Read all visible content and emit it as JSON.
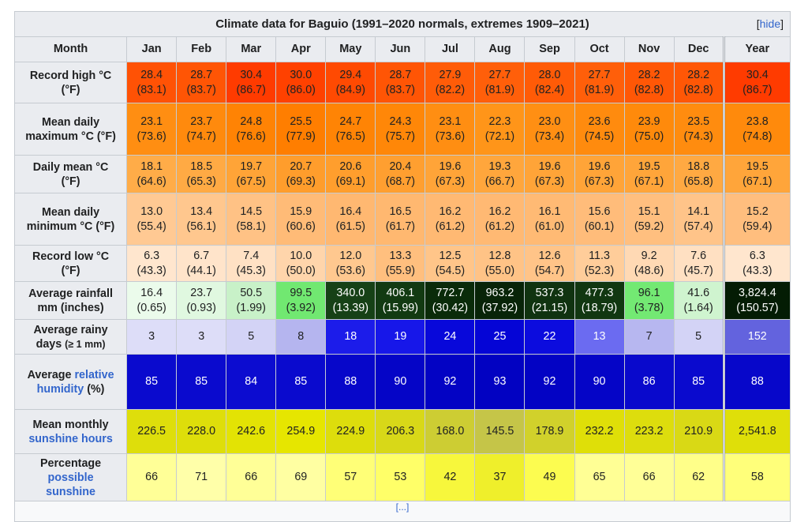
{
  "table": {
    "title": "Climate data for Baguio (1991–2020 normals, extremes 1909–2021)",
    "hide_open": "[",
    "hide_label": "hide",
    "hide_close": "]",
    "columns": [
      "Month",
      "Jan",
      "Feb",
      "Mar",
      "Apr",
      "May",
      "Jun",
      "Jul",
      "Aug",
      "Sep",
      "Oct",
      "Nov",
      "Dec",
      "Year"
    ],
    "footer_note": "[...]",
    "link_color": "#3366cc",
    "header_bg": "#eaecf0",
    "rows": [
      {
        "name": "record-high",
        "label": [
          {
            "t": "Record high °C (°F)"
          }
        ],
        "cells": [
          {
            "v": "28.4",
            "v2": "(83.1)",
            "bg": "#FF5205"
          },
          {
            "v": "28.7",
            "v2": "(83.7)",
            "bg": "#FF5505"
          },
          {
            "v": "30.4",
            "v2": "(86.7)",
            "bg": "#FF3B00"
          },
          {
            "v": "30.0",
            "v2": "(86.0)",
            "bg": "#FF4100"
          },
          {
            "v": "29.4",
            "v2": "(84.9)",
            "bg": "#FF4A02"
          },
          {
            "v": "28.7",
            "v2": "(83.7)",
            "bg": "#FF5505"
          },
          {
            "v": "27.9",
            "v2": "(82.2)",
            "bg": "#FF5C08"
          },
          {
            "v": "27.7",
            "v2": "(81.9)",
            "bg": "#FF5F0A"
          },
          {
            "v": "28.0",
            "v2": "(82.4)",
            "bg": "#FF5B07"
          },
          {
            "v": "27.7",
            "v2": "(81.9)",
            "bg": "#FF5F0A"
          },
          {
            "v": "28.2",
            "v2": "(82.8)",
            "bg": "#FF5706"
          },
          {
            "v": "28.2",
            "v2": "(82.8)",
            "bg": "#FF5706"
          },
          {
            "v": "30.4",
            "v2": "(86.7)",
            "bg": "#FF3B00"
          }
        ]
      },
      {
        "name": "mean-max",
        "label": [
          {
            "t": "Mean daily maximum °C (°F)"
          }
        ],
        "cells": [
          {
            "v": "23.1",
            "v2": "(73.6)",
            "bg": "#FF8E12"
          },
          {
            "v": "23.7",
            "v2": "(74.7)",
            "bg": "#FF8A0D"
          },
          {
            "v": "24.8",
            "v2": "(76.6)",
            "bg": "#FF8304"
          },
          {
            "v": "25.5",
            "v2": "(77.9)",
            "bg": "#FF7E00"
          },
          {
            "v": "24.7",
            "v2": "(76.5)",
            "bg": "#FF8405"
          },
          {
            "v": "24.3",
            "v2": "(75.7)",
            "bg": "#FF8708"
          },
          {
            "v": "23.1",
            "v2": "(73.6)",
            "bg": "#FF8E12"
          },
          {
            "v": "22.3",
            "v2": "(72.1)",
            "bg": "#FF9519"
          },
          {
            "v": "23.0",
            "v2": "(73.4)",
            "bg": "#FF8F13"
          },
          {
            "v": "23.6",
            "v2": "(74.5)",
            "bg": "#FF8B0E"
          },
          {
            "v": "23.9",
            "v2": "(75.0)",
            "bg": "#FF8A0B"
          },
          {
            "v": "23.5",
            "v2": "(74.3)",
            "bg": "#FF8C0F"
          },
          {
            "v": "23.8",
            "v2": "(74.8)",
            "bg": "#FF8A0C"
          }
        ]
      },
      {
        "name": "daily-mean",
        "label": [
          {
            "t": "Daily mean °C (°F)"
          }
        ],
        "cells": [
          {
            "v": "18.1",
            "v2": "(64.6)",
            "bg": "#FFAC48"
          },
          {
            "v": "18.5",
            "v2": "(65.3)",
            "bg": "#FFAA44"
          },
          {
            "v": "19.7",
            "v2": "(67.5)",
            "bg": "#FFA437"
          },
          {
            "v": "20.7",
            "v2": "(69.3)",
            "bg": "#FF9D2C"
          },
          {
            "v": "20.6",
            "v2": "(69.1)",
            "bg": "#FF9E2D"
          },
          {
            "v": "20.4",
            "v2": "(68.7)",
            "bg": "#FF9F30"
          },
          {
            "v": "19.6",
            "v2": "(67.3)",
            "bg": "#FFA438"
          },
          {
            "v": "19.3",
            "v2": "(66.7)",
            "bg": "#FFA63C"
          },
          {
            "v": "19.6",
            "v2": "(67.3)",
            "bg": "#FFA438"
          },
          {
            "v": "19.6",
            "v2": "(67.3)",
            "bg": "#FFA438"
          },
          {
            "v": "19.5",
            "v2": "(67.1)",
            "bg": "#FFA53A"
          },
          {
            "v": "18.8",
            "v2": "(65.8)",
            "bg": "#FFA942"
          },
          {
            "v": "19.5",
            "v2": "(67.1)",
            "bg": "#FFA53A"
          }
        ]
      },
      {
        "name": "mean-min",
        "label": [
          {
            "t": "Mean daily minimum °C (°F)"
          }
        ],
        "cells": [
          {
            "v": "13.0",
            "v2": "(55.4)",
            "bg": "#FFC993"
          },
          {
            "v": "13.4",
            "v2": "(56.1)",
            "bg": "#FFC78E"
          },
          {
            "v": "14.5",
            "v2": "(58.1)",
            "bg": "#FFC285"
          },
          {
            "v": "15.9",
            "v2": "(60.6)",
            "bg": "#FFBB77"
          },
          {
            "v": "16.4",
            "v2": "(61.5)",
            "bg": "#FFB871"
          },
          {
            "v": "16.5",
            "v2": "(61.7)",
            "bg": "#FFB870"
          },
          {
            "v": "16.2",
            "v2": "(61.2)",
            "bg": "#FFB973"
          },
          {
            "v": "16.2",
            "v2": "(61.2)",
            "bg": "#FFB973"
          },
          {
            "v": "16.1",
            "v2": "(61.0)",
            "bg": "#FFBA74"
          },
          {
            "v": "15.6",
            "v2": "(60.1)",
            "bg": "#FFBC7A"
          },
          {
            "v": "15.1",
            "v2": "(59.2)",
            "bg": "#FFBF7F"
          },
          {
            "v": "14.1",
            "v2": "(57.4)",
            "bg": "#FFC489"
          },
          {
            "v": "15.2",
            "v2": "(59.4)",
            "bg": "#FFBE7E"
          }
        ]
      },
      {
        "name": "record-low",
        "label": [
          {
            "t": "Record low °C (°F)"
          }
        ],
        "cells": [
          {
            "v": "6.3",
            "v2": "(43.3)",
            "bg": "#FFE6CE"
          },
          {
            "v": "6.7",
            "v2": "(44.1)",
            "bg": "#FFE4CA"
          },
          {
            "v": "7.4",
            "v2": "(45.3)",
            "bg": "#FFE1C4"
          },
          {
            "v": "10.0",
            "v2": "(50.0)",
            "bg": "#FFD5AB"
          },
          {
            "v": "12.0",
            "v2": "(53.6)",
            "bg": "#FFC88F"
          },
          {
            "v": "13.3",
            "v2": "(55.9)",
            "bg": "#FFBF7E"
          },
          {
            "v": "12.5",
            "v2": "(54.5)",
            "bg": "#FFC589"
          },
          {
            "v": "12.8",
            "v2": "(55.0)",
            "bg": "#FFC386"
          },
          {
            "v": "12.6",
            "v2": "(54.7)",
            "bg": "#FFC488"
          },
          {
            "v": "11.3",
            "v2": "(52.3)",
            "bg": "#FFCD9A"
          },
          {
            "v": "9.2",
            "v2": "(48.6)",
            "bg": "#FFD9B4"
          },
          {
            "v": "7.6",
            "v2": "(45.7)",
            "bg": "#FFE0C2"
          },
          {
            "v": "6.3",
            "v2": "(43.3)",
            "bg": "#FFE6CE"
          }
        ]
      },
      {
        "name": "rainfall",
        "label": [
          {
            "t": "Average rainfall mm (inches)"
          }
        ],
        "cells": [
          {
            "v": "16.4",
            "v2": "(0.65)",
            "bg": "#EBFBEB"
          },
          {
            "v": "23.7",
            "v2": "(0.93)",
            "bg": "#E0F8E0"
          },
          {
            "v": "50.5",
            "v2": "(1.99)",
            "bg": "#C8F1C8"
          },
          {
            "v": "99.5",
            "v2": "(3.92)",
            "bg": "#71E871"
          },
          {
            "v": "340.0",
            "v2": "(13.39)",
            "bg": "#164116",
            "fg": "#ffffff"
          },
          {
            "v": "406.1",
            "v2": "(15.99)",
            "bg": "#123A12",
            "fg": "#ffffff"
          },
          {
            "v": "772.7",
            "v2": "(30.42)",
            "bg": "#0A2B0A",
            "fg": "#ffffff"
          },
          {
            "v": "963.2",
            "v2": "(37.92)",
            "bg": "#082408",
            "fg": "#ffffff"
          },
          {
            "v": "537.3",
            "v2": "(21.15)",
            "bg": "#103310",
            "fg": "#ffffff"
          },
          {
            "v": "477.3",
            "v2": "(18.79)",
            "bg": "#113711",
            "fg": "#ffffff"
          },
          {
            "v": "96.1",
            "v2": "(3.78)",
            "bg": "#73E973"
          },
          {
            "v": "41.6",
            "v2": "(1.64)",
            "bg": "#CFF4CF"
          },
          {
            "v": "3,824.4",
            "v2": "(150.57)",
            "bg": "#041C04",
            "fg": "#ffffff"
          }
        ]
      },
      {
        "name": "rainy-days",
        "label": [
          {
            "t": "Average rainy days "
          },
          {
            "t": "(≥ 1 mm)",
            "small": true
          }
        ],
        "cells": [
          {
            "v": "3",
            "bg": "#DDDDF8"
          },
          {
            "v": "3",
            "bg": "#DDDDF8"
          },
          {
            "v": "5",
            "bg": "#D3D3F6"
          },
          {
            "v": "8",
            "bg": "#B5B5EF"
          },
          {
            "v": "18",
            "bg": "#1C1CEA",
            "fg": "#ffffff"
          },
          {
            "v": "19",
            "bg": "#1717E9",
            "fg": "#ffffff"
          },
          {
            "v": "24",
            "bg": "#0808DA",
            "fg": "#ffffff"
          },
          {
            "v": "25",
            "bg": "#0505D6",
            "fg": "#ffffff"
          },
          {
            "v": "22",
            "bg": "#0C0CDE",
            "fg": "#ffffff"
          },
          {
            "v": "13",
            "bg": "#6B6BF1",
            "fg": "#ffffff"
          },
          {
            "v": "7",
            "bg": "#B7B7F0"
          },
          {
            "v": "5",
            "bg": "#D3D3F6"
          },
          {
            "v": "152",
            "bg": "#6363DE",
            "fg": "#ffffff"
          }
        ]
      },
      {
        "name": "humidity",
        "label": [
          {
            "t": "Average "
          },
          {
            "t": "relative humidity",
            "link": true
          },
          {
            "t": " (%)"
          }
        ],
        "cells": [
          {
            "v": "85",
            "bg": "#0A0ACE",
            "fg": "#ffffff"
          },
          {
            "v": "85",
            "bg": "#0A0ACE",
            "fg": "#ffffff"
          },
          {
            "v": "84",
            "bg": "#0C0CD0",
            "fg": "#ffffff"
          },
          {
            "v": "85",
            "bg": "#0A0ACE",
            "fg": "#ffffff"
          },
          {
            "v": "88",
            "bg": "#0707CA",
            "fg": "#ffffff"
          },
          {
            "v": "90",
            "bg": "#0505C7",
            "fg": "#ffffff"
          },
          {
            "v": "92",
            "bg": "#0303C4",
            "fg": "#ffffff"
          },
          {
            "v": "93",
            "bg": "#0202C2",
            "fg": "#ffffff"
          },
          {
            "v": "92",
            "bg": "#0303C4",
            "fg": "#ffffff"
          },
          {
            "v": "90",
            "bg": "#0505C7",
            "fg": "#ffffff"
          },
          {
            "v": "86",
            "bg": "#0909CC",
            "fg": "#ffffff"
          },
          {
            "v": "85",
            "bg": "#0A0ACE",
            "fg": "#ffffff"
          },
          {
            "v": "88",
            "bg": "#0707CA",
            "fg": "#ffffff"
          }
        ]
      },
      {
        "name": "sunshine-hours",
        "label": [
          {
            "t": "Mean monthly "
          },
          {
            "t": "sunshine hours",
            "link": true
          }
        ],
        "cells": [
          {
            "v": "226.5",
            "bg": "#DEDE0B"
          },
          {
            "v": "228.0",
            "bg": "#DEDE0A"
          },
          {
            "v": "242.6",
            "bg": "#E3E304"
          },
          {
            "v": "254.9",
            "bg": "#E6E600"
          },
          {
            "v": "224.9",
            "bg": "#DDDD0C"
          },
          {
            "v": "206.3",
            "bg": "#D8D818"
          },
          {
            "v": "168.0",
            "bg": "#CDCD33"
          },
          {
            "v": "145.5",
            "bg": "#C5C548"
          },
          {
            "v": "178.9",
            "bg": "#D1D12B"
          },
          {
            "v": "232.2",
            "bg": "#DFDF08"
          },
          {
            "v": "223.2",
            "bg": "#DDDD0D"
          },
          {
            "v": "210.9",
            "bg": "#D9D915"
          },
          {
            "v": "2,541.8",
            "bg": "#DFDF09"
          }
        ]
      },
      {
        "name": "pct-sunshine",
        "label": [
          {
            "t": "Percentage "
          },
          {
            "t": "possible sunshine",
            "link": true
          }
        ],
        "cells": [
          {
            "v": "66",
            "bg": "#FFFF97"
          },
          {
            "v": "71",
            "bg": "#FFFFA9"
          },
          {
            "v": "66",
            "bg": "#FFFF97"
          },
          {
            "v": "69",
            "bg": "#FFFFA2"
          },
          {
            "v": "57",
            "bg": "#FFFF77"
          },
          {
            "v": "53",
            "bg": "#FFFF68"
          },
          {
            "v": "42",
            "bg": "#F7F73C"
          },
          {
            "v": "37",
            "bg": "#EFEF2B"
          },
          {
            "v": "49",
            "bg": "#FCFC50"
          },
          {
            "v": "65",
            "bg": "#FFFF95"
          },
          {
            "v": "66",
            "bg": "#FFFF97"
          },
          {
            "v": "62",
            "bg": "#FFFF89"
          },
          {
            "v": "58",
            "bg": "#FFFF7A"
          }
        ]
      }
    ]
  }
}
